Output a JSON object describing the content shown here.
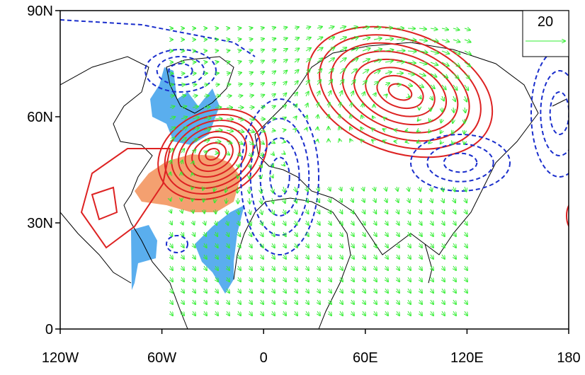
{
  "map": {
    "xlim": [
      -120,
      180
    ],
    "ylim": [
      0,
      90
    ],
    "xticks": [
      {
        "value": -120,
        "label": "120W"
      },
      {
        "value": -60,
        "label": "60W"
      },
      0,
      {
        "value": 60,
        "label": "60E"
      },
      {
        "value": 120,
        "label": "120E"
      },
      180
    ],
    "yticks": [
      0,
      {
        "value": 30,
        "label": "30N"
      },
      {
        "value": 60,
        "label": "60N"
      },
      {
        "value": 90,
        "label": "90N"
      }
    ],
    "reference_vector": 20
  }
}
